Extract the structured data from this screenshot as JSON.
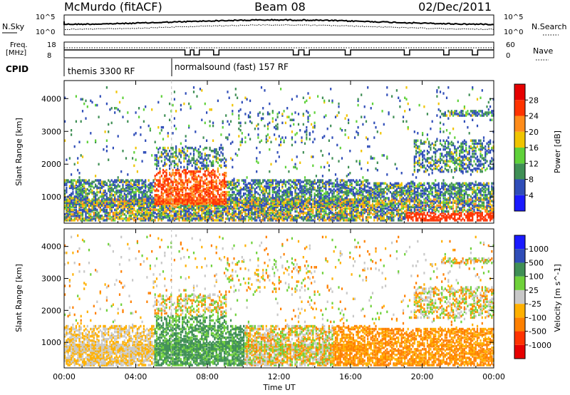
{
  "header": {
    "station": "McMurdo (fitACF)",
    "beam": "Beam 08",
    "date": "02/Dec/2011"
  },
  "left_labels": {
    "nsky": "N.Sky",
    "freq_line1": "Freq.",
    "freq_line2": "[MHz]",
    "cpid": "CPID"
  },
  "right_labels": {
    "nsearch": "N.Search",
    "nave": "Nave"
  },
  "nsky_ticks": [
    "10^5",
    "10^0"
  ],
  "nsearch_ticks": [
    "10^5",
    "10^0"
  ],
  "freq_ticks": [
    "18",
    "8"
  ],
  "nave_ticks": [
    "60",
    "0"
  ],
  "cpid_segments": [
    {
      "label": "themis 3300 RF",
      "start_hour": 0
    },
    {
      "label": "normalsound (fast) 157 RF",
      "start_hour": 6
    }
  ],
  "colors": {
    "power": [
      "#1a1aff",
      "#2f4db8",
      "#3f8f55",
      "#5fd13a",
      "#f0c400",
      "#ff8c1a",
      "#ff3300",
      "#e60000"
    ],
    "velocity": [
      "#e60000",
      "#ff3300",
      "#ff8000",
      "#ffb000",
      "#c8c8c8",
      "#6fd13a",
      "#3f8f55",
      "#2f4db8",
      "#1a1aff"
    ]
  },
  "chart_data": [
    {
      "type": "heatmap",
      "name": "power",
      "ylabel": "Slant Range [km]",
      "xlabel": "",
      "ylim": [
        200,
        4550
      ],
      "xlim": [
        0,
        24
      ],
      "yticks": [
        1000,
        2000,
        3000,
        4000
      ],
      "colorbar_label": "Power [dB]",
      "colorbar_ticks": [
        4,
        8,
        12,
        16,
        20,
        24,
        28
      ],
      "colorbar_range": [
        0,
        32
      ]
    },
    {
      "type": "heatmap",
      "name": "velocity",
      "ylabel": "Slant Range [km]",
      "xlabel": "Time UT",
      "ylim": [
        200,
        4550
      ],
      "xlim": [
        0,
        24
      ],
      "yticks": [
        1000,
        2000,
        3000,
        4000
      ],
      "xtick_labels": [
        "00:00",
        "04:00",
        "08:00",
        "12:00",
        "16:00",
        "20:00",
        "00:00"
      ],
      "colorbar_label": "Velocity [m s^-1]",
      "colorbar_ticks": [
        "1000",
        "500",
        "100",
        "25",
        "-25",
        "-100",
        "-500",
        "-1000"
      ]
    }
  ]
}
